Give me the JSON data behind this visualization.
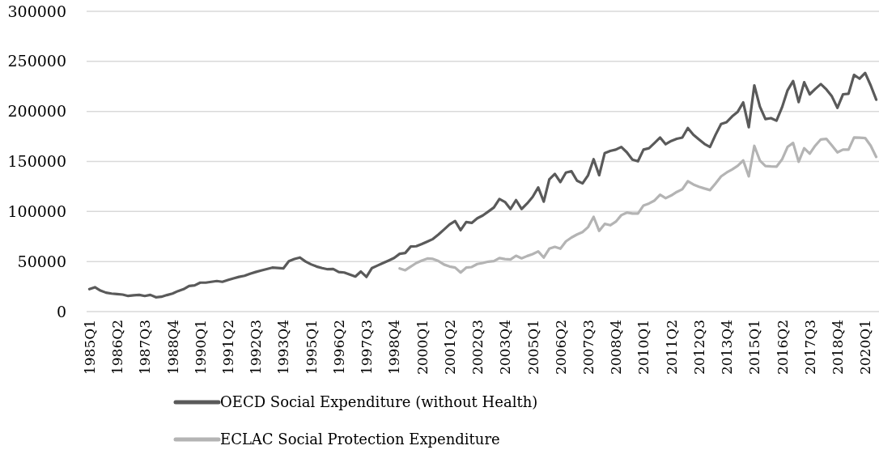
{
  "chart_data": {
    "type": "line",
    "categories": [
      "1985Q1",
      null,
      null,
      null,
      null,
      "1986Q2",
      null,
      null,
      null,
      null,
      "1987Q3",
      null,
      null,
      null,
      null,
      "1988Q4",
      null,
      null,
      null,
      null,
      "1990Q1",
      null,
      null,
      null,
      null,
      "1991Q2",
      null,
      null,
      null,
      null,
      "1992Q3",
      null,
      null,
      null,
      null,
      "1993Q4",
      null,
      null,
      null,
      null,
      "1995Q1",
      null,
      null,
      null,
      null,
      "1996Q2",
      null,
      null,
      null,
      null,
      "1997Q3",
      null,
      null,
      null,
      null,
      "1998Q4",
      null,
      null,
      null,
      null,
      "2000Q1",
      null,
      null,
      null,
      null,
      "2001Q2",
      null,
      null,
      null,
      null,
      "2002Q3",
      null,
      null,
      null,
      null,
      "2003Q4",
      null,
      null,
      null,
      null,
      "2005Q1",
      null,
      null,
      null,
      null,
      "2006Q2",
      null,
      null,
      null,
      null,
      "2007Q3",
      null,
      null,
      null,
      null,
      "2008Q4",
      null,
      null,
      null,
      null,
      "2010Q1",
      null,
      null,
      null,
      null,
      "2011Q2",
      null,
      null,
      null,
      null,
      "2012Q3",
      null,
      null,
      null,
      null,
      "2013Q4",
      null,
      null,
      null,
      null,
      "2015Q1",
      null,
      null,
      null,
      null,
      "2016Q2",
      null,
      null,
      null,
      null,
      "2017Q3",
      null,
      null,
      null,
      null,
      "2018Q4",
      null,
      null,
      null,
      null,
      "2020Q1",
      null,
      null
    ],
    "series": [
      {
        "name": "OECD Social Expenditure (without Health)",
        "color": "#5a5a5a",
        "values": [
          22400,
          24300,
          21000,
          18900,
          18000,
          17500,
          17000,
          15600,
          16300,
          16700,
          15600,
          16700,
          14300,
          14800,
          16500,
          18000,
          20500,
          22400,
          25600,
          26200,
          28900,
          28900,
          29700,
          30500,
          29700,
          31500,
          33200,
          34700,
          35800,
          37800,
          39500,
          41000,
          42500,
          43900,
          43500,
          43100,
          50400,
          52500,
          54000,
          50000,
          47200,
          45000,
          43500,
          42300,
          42500,
          39500,
          39000,
          37000,
          35000,
          40000,
          34600,
          43500,
          46000,
          48500,
          51000,
          53600,
          57700,
          58500,
          65000,
          65300,
          67500,
          70000,
          72500,
          77000,
          82000,
          87000,
          90400,
          81300,
          89400,
          88600,
          93200,
          96000,
          100000,
          104000,
          112500,
          109500,
          102500,
          111400,
          102500,
          108000,
          114600,
          124000,
          109800,
          132100,
          137500,
          129400,
          138900,
          140200,
          130800,
          128100,
          136200,
          152300,
          136200,
          158300,
          160500,
          161800,
          164500,
          159100,
          151800,
          150200,
          161800,
          163200,
          168500,
          173900,
          167200,
          170500,
          172600,
          173900,
          183400,
          176600,
          172000,
          167500,
          164500,
          176600,
          187400,
          189300,
          195000,
          199600,
          209000,
          184200,
          226000,
          204900,
          192300,
          193300,
          190700,
          204000,
          221100,
          230300,
          209300,
          229200,
          217100,
          222500,
          227300,
          222000,
          215000,
          203600,
          217100,
          217600,
          236500,
          232700,
          238400,
          226000,
          211700
        ]
      },
      {
        "name": "ECLAC Social Protection Expenditure",
        "color": "#b4b4b4",
        "values": [
          null,
          null,
          null,
          null,
          null,
          null,
          null,
          null,
          null,
          null,
          null,
          null,
          null,
          null,
          null,
          null,
          null,
          null,
          null,
          null,
          null,
          null,
          null,
          null,
          null,
          null,
          null,
          null,
          null,
          null,
          null,
          null,
          null,
          null,
          null,
          null,
          null,
          null,
          null,
          null,
          null,
          null,
          null,
          null,
          null,
          null,
          null,
          null,
          null,
          null,
          null,
          null,
          null,
          null,
          null,
          null,
          43100,
          41300,
          45000,
          48500,
          51000,
          53000,
          52600,
          50500,
          47000,
          45000,
          44000,
          39000,
          43900,
          44500,
          47500,
          48500,
          49900,
          50400,
          53500,
          52500,
          52000,
          55800,
          53200,
          55500,
          57400,
          60100,
          54000,
          62800,
          64700,
          62800,
          70100,
          74000,
          77000,
          79500,
          84400,
          94600,
          80600,
          87600,
          86300,
          89800,
          96300,
          98900,
          98000,
          97900,
          106000,
          108000,
          111000,
          116700,
          113300,
          116000,
          119500,
          122200,
          130200,
          127000,
          124800,
          123000,
          121400,
          128000,
          135000,
          138900,
          142000,
          145600,
          151000,
          135100,
          165600,
          151000,
          145500,
          145000,
          144800,
          152000,
          164500,
          168500,
          149700,
          163200,
          157800,
          165800,
          172000,
          172600,
          166000,
          159100,
          161800,
          161800,
          173900,
          173800,
          173400,
          165800,
          154500
        ]
      }
    ],
    "ylim": [
      0,
      300000
    ],
    "yticks": [
      0,
      50000,
      100000,
      150000,
      200000,
      250000,
      300000
    ],
    "grid": "y",
    "legend": "bottom"
  }
}
